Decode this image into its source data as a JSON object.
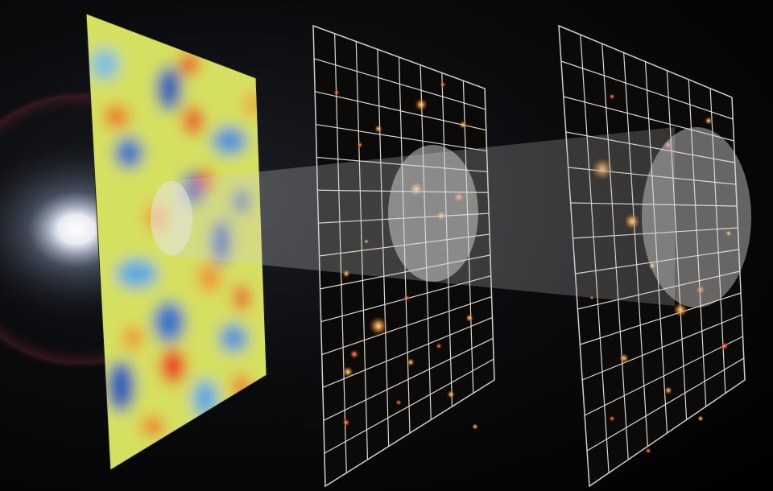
{
  "scene": {
    "subject": "illustration",
    "panels": [
      {
        "id": "cmb-map",
        "style": "temperature-fluctuation map"
      },
      {
        "id": "galaxy-grid-near",
        "style": "gridded galaxy field"
      },
      {
        "id": "galaxy-grid-far",
        "style": "gridded galaxy field"
      }
    ],
    "colors": {
      "background": "#000000",
      "glow": "#ffffff",
      "map_warm": "#e8321c",
      "map_mid": "#f2e35a",
      "map_cool": "#2c5fb8",
      "grid_line": "#d9d9d9",
      "galaxy_glow": "#f0a040",
      "beam": "#c8c8c8"
    }
  }
}
